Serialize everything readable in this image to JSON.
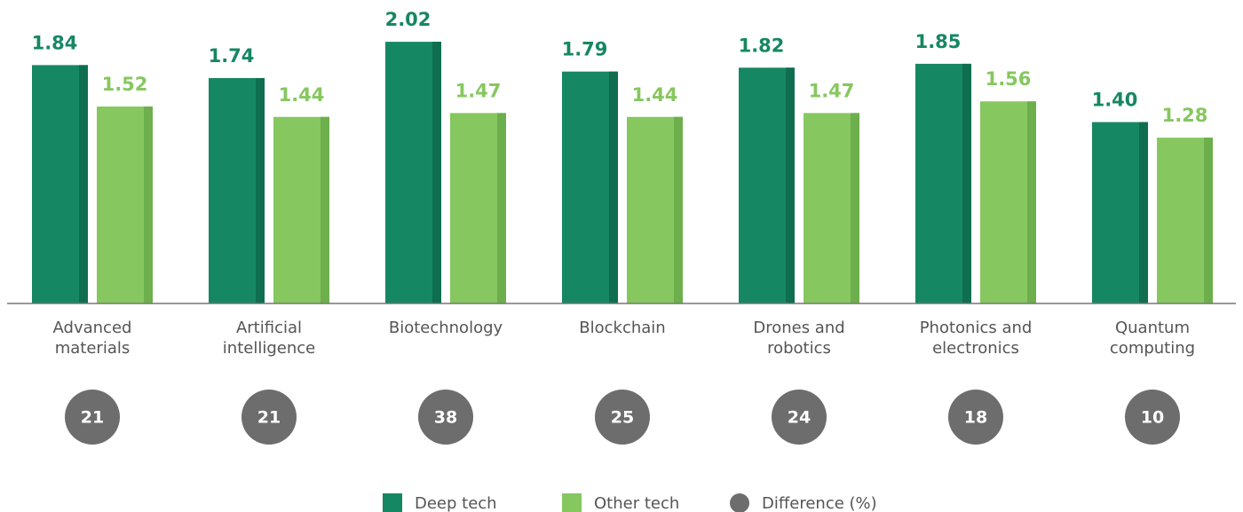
{
  "chart_data": {
    "type": "bar",
    "categories": [
      "Advanced materials",
      "Artificial intelligence",
      "Biotechnology",
      "Blockchain",
      "Drones and robotics",
      "Photonics and electronics",
      "Quantum computing"
    ],
    "series": [
      {
        "name": "Deep tech",
        "color": "#168763",
        "values": [
          1.84,
          1.74,
          2.02,
          1.79,
          1.82,
          1.85,
          1.4
        ],
        "value_labels": [
          "1.84",
          "1.74",
          "2.02",
          "1.79",
          "1.82",
          "1.85",
          "1.40"
        ]
      },
      {
        "name": "Other tech",
        "color": "#86c760",
        "values": [
          1.52,
          1.44,
          1.47,
          1.44,
          1.47,
          1.56,
          1.28
        ],
        "value_labels": [
          "1.52",
          "1.44",
          "1.47",
          "1.44",
          "1.47",
          "1.56",
          "1.28"
        ]
      },
      {
        "name": "Difference (%)",
        "color": "#6d6d6d",
        "values": [
          21,
          21,
          38,
          25,
          24,
          18,
          10
        ]
      }
    ],
    "ylim": [
      0,
      2.2
    ]
  }
}
